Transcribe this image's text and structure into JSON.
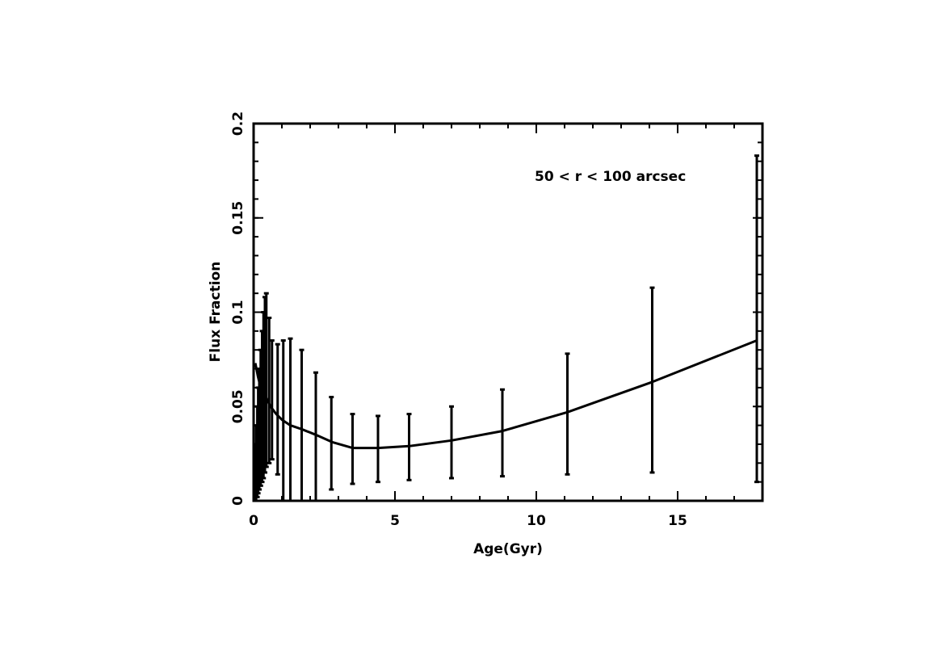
{
  "chart_data": {
    "type": "line",
    "annotation": "50 < r < 100 arcsec",
    "xlabel": "Age(Gyr)",
    "ylabel": "Flux Fraction",
    "xlim": [
      0,
      18
    ],
    "ylim": [
      0,
      0.2
    ],
    "x_ticks": [
      0,
      5,
      10,
      15
    ],
    "x_tick_labels": [
      "0",
      "5",
      "10",
      "15"
    ],
    "y_ticks": [
      0,
      0.05,
      0.1,
      0.15,
      0.2
    ],
    "y_tick_labels": [
      "0",
      "0.05",
      "0.1",
      "0.15",
      "0.2"
    ],
    "x_minor_step": 1,
    "y_minor_step": 0.01,
    "grid": false,
    "series": [
      {
        "style": "curve",
        "x": [
          0.06,
          0.1,
          0.15,
          0.2,
          0.3,
          0.4,
          0.5,
          0.6,
          0.8,
          1.0,
          1.3,
          1.7,
          2.2,
          2.8,
          3.5,
          4.4,
          5.5,
          7.0,
          8.8,
          11.1,
          14.1,
          17.8
        ],
        "y": [
          0.073,
          0.07,
          0.066,
          0.063,
          0.059,
          0.056,
          0.053,
          0.05,
          0.046,
          0.043,
          0.04,
          0.038,
          0.035,
          0.031,
          0.028,
          0.028,
          0.029,
          0.032,
          0.037,
          0.047,
          0.063,
          0.085
        ]
      },
      {
        "style": "errorbars",
        "x": [
          0.06,
          0.08,
          0.1,
          0.13,
          0.16,
          0.2,
          0.25,
          0.32,
          0.4,
          0.5,
          0.63,
          0.79,
          1.0,
          1.26,
          1.58,
          2.0,
          2.5,
          3.16,
          3.98,
          5.0,
          6.3,
          7.9,
          10.0,
          12.6,
          15.8,
          17.8
        ],
        "x_actual": [
          0.06,
          0.09,
          0.13,
          0.16,
          0.2,
          0.25,
          0.3,
          0.35,
          0.4,
          0.45,
          0.55,
          0.65,
          0.85,
          1.05,
          1.3,
          1.7,
          2.2,
          2.75,
          3.5,
          4.4,
          5.5,
          7.0,
          8.8,
          11.1,
          14.1,
          17.8
        ],
        "low": [
          0.0,
          0.0,
          0.002,
          0.004,
          0.006,
          0.008,
          0.01,
          0.012,
          0.015,
          0.018,
          0.02,
          0.022,
          0.014,
          0.0,
          0.0,
          0.0,
          0.0,
          0.006,
          0.009,
          0.01,
          0.011,
          0.012,
          0.013,
          0.014,
          0.015,
          0.01
        ],
        "high": [
          0.03,
          0.04,
          0.05,
          0.06,
          0.07,
          0.08,
          0.09,
          0.1,
          0.108,
          0.11,
          0.097,
          0.085,
          0.083,
          0.085,
          0.086,
          0.08,
          0.068,
          0.055,
          0.046,
          0.045,
          0.046,
          0.05,
          0.059,
          0.078,
          0.113,
          0.183
        ]
      }
    ]
  }
}
